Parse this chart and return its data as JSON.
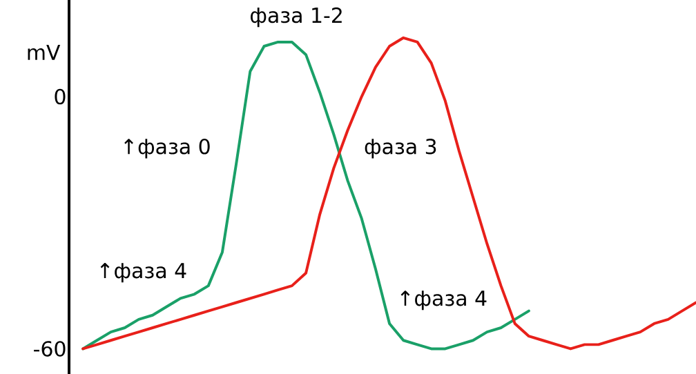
{
  "chart_data": {
    "type": "line",
    "ylabel": "mV",
    "categories": [
      null,
      null,
      null,
      null,
      null,
      null,
      null,
      null,
      null,
      null,
      null,
      null,
      null,
      null,
      null,
      null,
      null,
      null,
      null,
      null,
      null,
      null,
      null,
      null,
      null,
      null,
      null,
      null,
      null,
      null,
      null,
      null,
      null,
      null,
      null,
      null,
      null,
      null,
      null,
      null,
      null,
      null,
      null,
      null,
      null
    ],
    "ylim": [
      -66,
      23
    ],
    "yticks": [
      0,
      -60
    ],
    "grid": false,
    "marker": "none",
    "line_style": "solid",
    "series": [
      {
        "color": "#1aa068",
        "values": [
          -60,
          -58,
          -56,
          -55,
          -53,
          -52,
          -50,
          -48,
          -47,
          -45,
          -37,
          -16,
          6,
          12,
          13,
          13,
          10,
          1,
          -9,
          -20,
          -29,
          -41,
          -54,
          -58,
          -59,
          -60,
          -60,
          -59,
          -58,
          -56,
          -55,
          -53,
          -51,
          null,
          null,
          null,
          null,
          null,
          null,
          null,
          null,
          null,
          null,
          null,
          null
        ]
      },
      {
        "color": "#e8201a",
        "values": [
          -60,
          -59,
          -58,
          -57,
          -56,
          -55,
          -54,
          -53,
          -52,
          -51,
          -50,
          -49,
          -48,
          -47,
          -46,
          -45,
          -42,
          -28,
          -17,
          -8,
          0,
          7,
          12,
          14,
          13,
          8,
          -1,
          -13,
          -24,
          -35,
          -45,
          -54,
          -57,
          -58,
          -59,
          -60,
          -59,
          -59,
          -58,
          -57,
          -56,
          -54,
          -53,
          -51,
          -49
        ]
      }
    ],
    "annotations": [
      "фаза 1-2",
      "↑фаза 0",
      "фаза 3",
      "↑фаза 4",
      "↑фаза 4"
    ]
  }
}
